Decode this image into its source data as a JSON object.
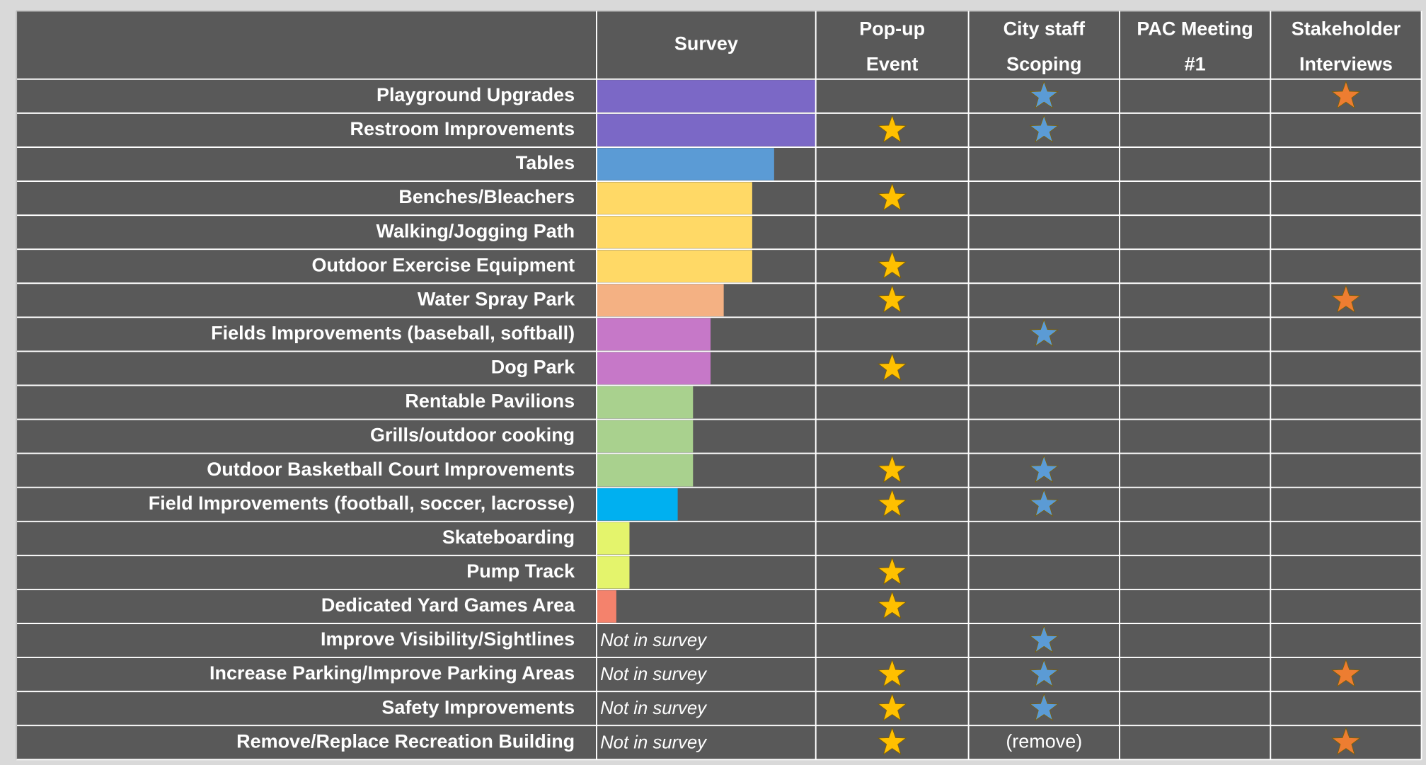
{
  "table": {
    "columns": [
      {
        "header": [
          "Survey"
        ]
      },
      {
        "header": [
          "Pop-up",
          "Event"
        ],
        "star_color": "#ffc000"
      },
      {
        "header": [
          "City staff",
          "Scoping"
        ],
        "star_color": "#5b9bd5"
      },
      {
        "header": [
          "PAC Meeting",
          "#1"
        ]
      },
      {
        "header": [
          "Stakeholder",
          "Interviews"
        ],
        "star_color": "#ed7d31"
      }
    ],
    "rows": [
      {
        "label": "Playground Upgrades",
        "survey": 100,
        "color": "#7b68c6",
        "marks": [
          false,
          true,
          false,
          true
        ]
      },
      {
        "label": "Restroom Improvements",
        "survey": 100,
        "color": "#7b68c6",
        "marks": [
          true,
          true,
          false,
          false
        ]
      },
      {
        "label": "Tables",
        "survey": 81,
        "color": "#5b9bd5",
        "marks": [
          false,
          false,
          false,
          false
        ]
      },
      {
        "label": "Benches/Bleachers",
        "survey": 71,
        "color": "#ffd966",
        "marks": [
          true,
          false,
          false,
          false
        ]
      },
      {
        "label": "Walking/Jogging Path",
        "survey": 71,
        "color": "#ffd966",
        "marks": [
          false,
          false,
          false,
          false
        ]
      },
      {
        "label": "Outdoor Exercise Equipment",
        "survey": 71,
        "color": "#ffd966",
        "marks": [
          true,
          false,
          false,
          false
        ]
      },
      {
        "label": "Water Spray Park",
        "survey": 58,
        "color": "#f4b183",
        "marks": [
          true,
          false,
          false,
          true
        ]
      },
      {
        "label": "Fields Improvements (baseball, softball)",
        "survey": 52,
        "color": "#c678c8",
        "marks": [
          false,
          true,
          false,
          false
        ]
      },
      {
        "label": "Dog Park",
        "survey": 52,
        "color": "#c678c8",
        "marks": [
          true,
          false,
          false,
          false
        ]
      },
      {
        "label": "Rentable Pavilions",
        "survey": 44,
        "color": "#a9d18e",
        "marks": [
          false,
          false,
          false,
          false
        ]
      },
      {
        "label": "Grills/outdoor cooking",
        "survey": 44,
        "color": "#a9d18e",
        "marks": [
          false,
          false,
          false,
          false
        ]
      },
      {
        "label": "Outdoor Basketball Court Improvements",
        "survey": 44,
        "color": "#a9d18e",
        "marks": [
          true,
          true,
          false,
          false
        ]
      },
      {
        "label": "Field Improvements (football, soccer, lacrosse)",
        "survey": 37,
        "color": "#00b0f0",
        "marks": [
          true,
          true,
          false,
          false
        ]
      },
      {
        "label": "Skateboarding",
        "survey": 15,
        "color": "#e4f46c",
        "marks": [
          false,
          false,
          false,
          false
        ]
      },
      {
        "label": "Pump Track",
        "survey": 15,
        "color": "#e4f46c",
        "marks": [
          true,
          false,
          false,
          false
        ]
      },
      {
        "label": "Dedicated Yard Games Area",
        "survey": 9,
        "color": "#f4826c",
        "marks": [
          true,
          false,
          false,
          false
        ]
      },
      {
        "label": "Improve Visibility/Sightlines",
        "survey_label": "Not in survey",
        "marks": [
          false,
          true,
          false,
          false
        ]
      },
      {
        "label": "Increase Parking/Improve Parking Areas",
        "survey_label": "Not in survey",
        "marks": [
          true,
          true,
          false,
          true
        ]
      },
      {
        "label": "Safety Improvements",
        "survey_label": "Not in survey",
        "marks": [
          true,
          true,
          false,
          false
        ]
      },
      {
        "label": "Remove/Replace Recreation Building",
        "survey_label": "Not in survey",
        "marks": [
          true,
          "(remove)",
          false,
          true
        ]
      }
    ]
  }
}
